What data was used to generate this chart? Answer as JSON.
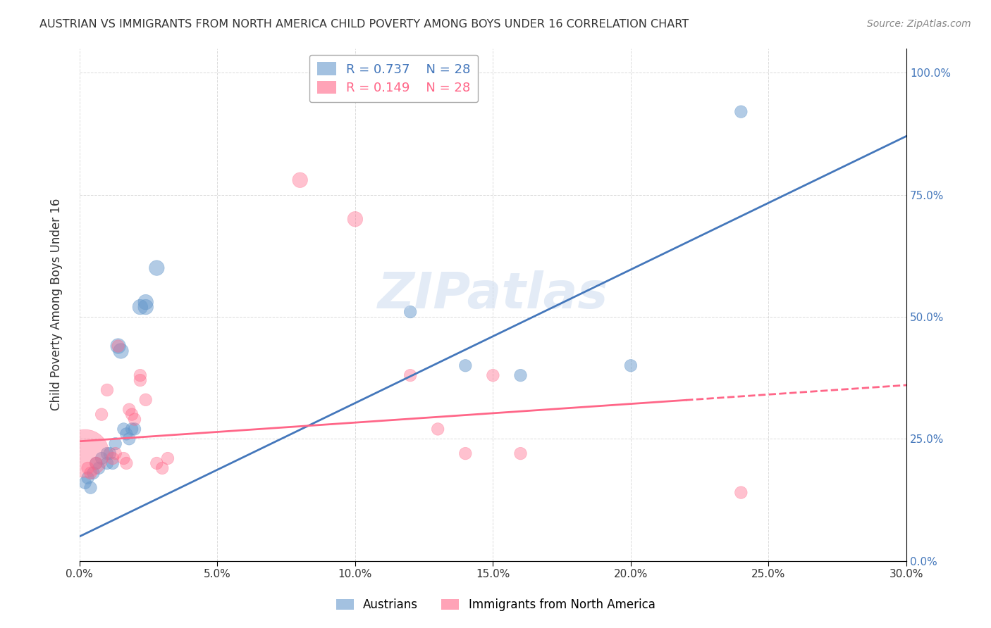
{
  "title": "AUSTRIAN VS IMMIGRANTS FROM NORTH AMERICA CHILD POVERTY AMONG BOYS UNDER 16 CORRELATION CHART",
  "source": "Source: ZipAtlas.com",
  "ylabel": "Child Poverty Among Boys Under 16",
  "xlabel_ticks": [
    "0.0%",
    "5.0%",
    "10.0%",
    "15.0%",
    "20.0%",
    "25.0%",
    "30.0%"
  ],
  "ylabel_ticks": [
    "0.0%",
    "25.0%",
    "50.0%",
    "75.0%",
    "100.0%"
  ],
  "xmin": 0.0,
  "xmax": 0.3,
  "ymin": 0.0,
  "ymax": 1.05,
  "legend_label1": "Austrians",
  "legend_label2": "Immigrants from North America",
  "r1": 0.737,
  "n1": 28,
  "r2": 0.149,
  "n2": 28,
  "color_blue": "#6699CC",
  "color_pink": "#FF6688",
  "color_blue_line": "#4477BB",
  "color_pink_line": "#FF6688",
  "watermark": "ZIPatlas",
  "blue_points": [
    [
      0.002,
      0.16
    ],
    [
      0.003,
      0.17
    ],
    [
      0.004,
      0.15
    ],
    [
      0.005,
      0.18
    ],
    [
      0.006,
      0.2
    ],
    [
      0.007,
      0.19
    ],
    [
      0.008,
      0.21
    ],
    [
      0.01,
      0.22
    ],
    [
      0.01,
      0.2
    ],
    [
      0.011,
      0.22
    ],
    [
      0.012,
      0.2
    ],
    [
      0.013,
      0.24
    ],
    [
      0.014,
      0.44
    ],
    [
      0.015,
      0.43
    ],
    [
      0.016,
      0.27
    ],
    [
      0.017,
      0.26
    ],
    [
      0.018,
      0.25
    ],
    [
      0.019,
      0.27
    ],
    [
      0.02,
      0.27
    ],
    [
      0.022,
      0.52
    ],
    [
      0.024,
      0.53
    ],
    [
      0.024,
      0.52
    ],
    [
      0.028,
      0.6
    ],
    [
      0.12,
      0.51
    ],
    [
      0.14,
      0.4
    ],
    [
      0.16,
      0.38
    ],
    [
      0.2,
      0.4
    ],
    [
      0.24,
      0.92
    ]
  ],
  "blue_sizes": [
    20,
    20,
    20,
    20,
    20,
    20,
    20,
    20,
    20,
    20,
    20,
    20,
    30,
    30,
    20,
    20,
    20,
    20,
    20,
    30,
    30,
    30,
    30,
    20,
    20,
    20,
    20,
    20
  ],
  "pink_points": [
    [
      0.002,
      0.22
    ],
    [
      0.003,
      0.19
    ],
    [
      0.004,
      0.18
    ],
    [
      0.006,
      0.2
    ],
    [
      0.008,
      0.3
    ],
    [
      0.01,
      0.35
    ],
    [
      0.012,
      0.21
    ],
    [
      0.013,
      0.22
    ],
    [
      0.014,
      0.44
    ],
    [
      0.016,
      0.21
    ],
    [
      0.017,
      0.2
    ],
    [
      0.018,
      0.31
    ],
    [
      0.019,
      0.3
    ],
    [
      0.02,
      0.29
    ],
    [
      0.022,
      0.38
    ],
    [
      0.022,
      0.37
    ],
    [
      0.024,
      0.33
    ],
    [
      0.028,
      0.2
    ],
    [
      0.03,
      0.19
    ],
    [
      0.032,
      0.21
    ],
    [
      0.08,
      0.78
    ],
    [
      0.1,
      0.7
    ],
    [
      0.12,
      0.38
    ],
    [
      0.13,
      0.27
    ],
    [
      0.14,
      0.22
    ],
    [
      0.15,
      0.38
    ],
    [
      0.16,
      0.22
    ],
    [
      0.24,
      0.14
    ]
  ],
  "pink_sizes": [
    300,
    20,
    20,
    20,
    20,
    20,
    20,
    20,
    20,
    20,
    20,
    20,
    20,
    20,
    20,
    20,
    20,
    20,
    20,
    20,
    30,
    30,
    20,
    20,
    20,
    20,
    20,
    20
  ],
  "grid_color": "#CCCCCC",
  "bg_color": "#FFFFFF"
}
